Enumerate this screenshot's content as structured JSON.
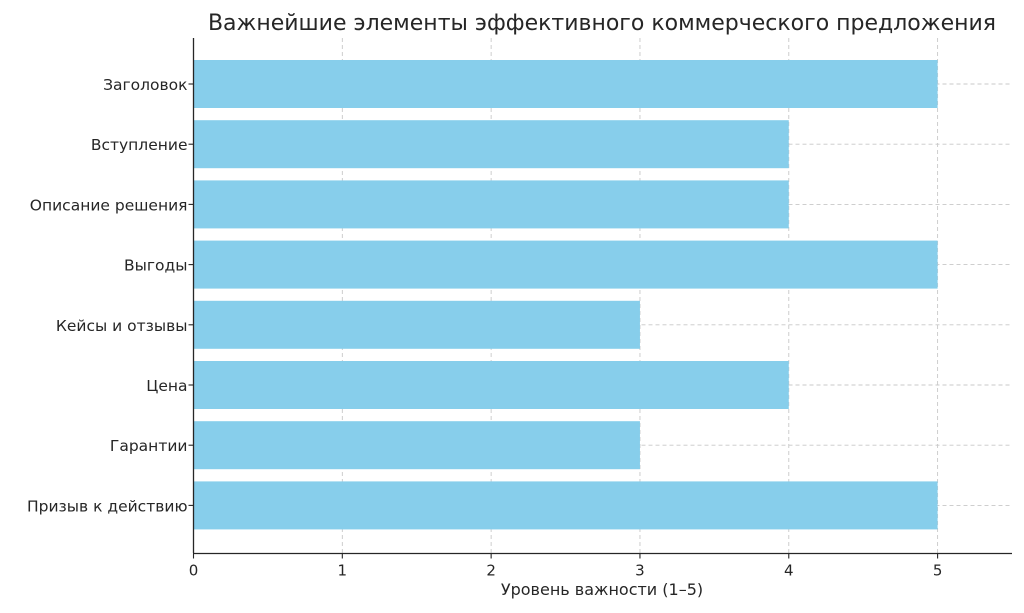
{
  "chart_data": {
    "type": "bar",
    "orientation": "horizontal",
    "title": "Важнейшие элементы эффективного коммерческого предложения",
    "xlabel": "Уровень важности (1–5)",
    "ylabel": "",
    "categories": [
      "Заголовок",
      "Вступление",
      "Описание решения",
      "Выгоды",
      "Кейсы и отзывы",
      "Цена",
      "Гарантии",
      "Призыв к действию"
    ],
    "values": [
      5,
      4,
      4,
      5,
      3,
      4,
      3,
      5
    ],
    "xlim": [
      0,
      5.5
    ],
    "xticks": [
      "0",
      "1",
      "2",
      "3",
      "4",
      "5"
    ],
    "grid": true,
    "bar_color": "#87CEEB"
  }
}
